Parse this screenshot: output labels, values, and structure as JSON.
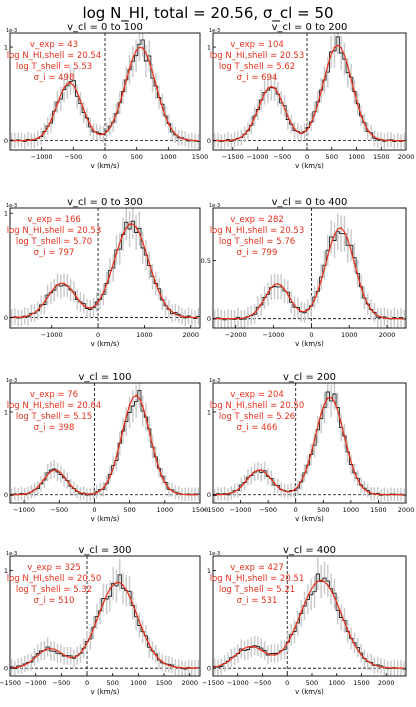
{
  "figure": {
    "suptitle": "log N_HI, total = 20.56, σ_cl = 50",
    "colors": {
      "data": "#222222",
      "model": "#e8301c",
      "errorbar": "#c8c8c8",
      "annotation": "#e8301c"
    }
  },
  "chart_data": [
    {
      "type": "line",
      "title": "v_cl = 0 to 100",
      "xlabel": "v (km/s)",
      "ylabel": "",
      "xlim": [
        -1500,
        1500
      ],
      "ylim": [
        -0.1,
        1.15
      ],
      "exponent": "1e-3",
      "xticks": [
        -1000,
        -500,
        0,
        500,
        1000,
        1500
      ],
      "yticks": [
        0,
        1
      ],
      "annotations": [
        "v_exp = 43",
        "log N_HI,shell = 20.54",
        "log T_shell = 5.53",
        "σ_i = 498"
      ],
      "peaks": {
        "blue": {
          "v": -560,
          "amp": 0.62,
          "width": 200
        },
        "red": {
          "v": 560,
          "amp": 1.0,
          "width": 240
        }
      }
    },
    {
      "type": "line",
      "title": "v_cl = 0 to 200",
      "xlabel": "v (km/s)",
      "ylabel": "",
      "xlim": [
        -1900,
        2000
      ],
      "ylim": [
        -0.1,
        1.15
      ],
      "exponent": "1e-3",
      "xticks": [
        -1500,
        -1000,
        -500,
        0,
        500,
        1000,
        1500,
        2000
      ],
      "yticks": [
        0,
        1
      ],
      "annotations": [
        "v_exp = 104",
        "log N_HI,shell = 20.53",
        "log T_shell = 5.62",
        "σ_i = 694"
      ],
      "peaks": {
        "blue": {
          "v": -720,
          "amp": 0.58,
          "width": 260
        },
        "red": {
          "v": 620,
          "amp": 1.02,
          "width": 290
        }
      }
    },
    {
      "type": "line",
      "title": "v_cl = 0 to 300",
      "xlabel": "v (km/s)",
      "ylabel": "",
      "xlim": [
        -1900,
        2200
      ],
      "ylim": [
        -0.1,
        1.05
      ],
      "exponent": "1e-3",
      "xticks": [
        -1000,
        0,
        1000,
        2000
      ],
      "yticks": [
        0,
        1
      ],
      "annotations": [
        "v_exp = 166",
        "log N_HI,shell = 20.53",
        "log T_shell = 5.70",
        "σ_i = 797"
      ],
      "peaks": {
        "blue": {
          "v": -780,
          "amp": 0.33,
          "width": 300
        },
        "red": {
          "v": 720,
          "amp": 0.9,
          "width": 370
        }
      }
    },
    {
      "type": "line",
      "title": "v_cl = 0 to 400",
      "xlabel": "v (km/s)",
      "ylabel": "",
      "xlim": [
        -2600,
        2500
      ],
      "ylim": [
        -0.08,
        0.95
      ],
      "exponent": "1e-3",
      "xticks": [
        -2000,
        -1000,
        0,
        1000,
        2000
      ],
      "yticks": [
        0,
        0.5
      ],
      "annotations": [
        "v_exp = 282",
        "log N_HI,shell = 20.53",
        "log T_shell = 5.76",
        "σ_i = 799"
      ],
      "peaks": {
        "blue": {
          "v": -900,
          "amp": 0.3,
          "width": 320
        },
        "red": {
          "v": 760,
          "amp": 0.78,
          "width": 380
        }
      }
    },
    {
      "type": "line",
      "title": "v_cl = 100",
      "xlabel": "v (km/s)",
      "ylabel": "",
      "xlim": [
        -1200,
        1500
      ],
      "ylim": [
        -0.1,
        1.35
      ],
      "exponent": "1e-3",
      "xticks": [
        -1000,
        -500,
        0,
        500,
        1000,
        1500
      ],
      "yticks": [
        0,
        1
      ],
      "annotations": [
        "v_exp = 76",
        "log N_HI,shell = 20.64",
        "log T_shell = 5.15",
        "σ_i = 398"
      ],
      "peaks": {
        "blue": {
          "v": -560,
          "amp": 0.3,
          "width": 160
        },
        "red": {
          "v": 590,
          "amp": 1.2,
          "width": 200
        }
      }
    },
    {
      "type": "line",
      "title": "v_cl = 200",
      "xlabel": "v (km/s)",
      "ylabel": "",
      "xlim": [
        -1500,
        2000
      ],
      "ylim": [
        -0.1,
        1.35
      ],
      "exponent": "1e-3",
      "xticks": [
        -1500,
        -1000,
        -500,
        0,
        500,
        1000,
        1500,
        2000
      ],
      "yticks": [
        0,
        1
      ],
      "annotations": [
        "v_exp = 204",
        "log N_HI,shell = 20.50",
        "log T_shell = 5.26",
        "σ_i = 466"
      ],
      "peaks": {
        "blue": {
          "v": -660,
          "amp": 0.3,
          "width": 220
        },
        "red": {
          "v": 620,
          "amp": 1.18,
          "width": 260
        }
      }
    },
    {
      "type": "line",
      "title": "v_cl = 300",
      "xlabel": "v (km/s)",
      "ylabel": "",
      "xlim": [
        -1500,
        2200
      ],
      "ylim": [
        -0.08,
        1.15
      ],
      "exponent": "1e-3",
      "xticks": [
        -1500,
        -1000,
        -500,
        0,
        500,
        1000,
        1500,
        2000
      ],
      "yticks": [
        0,
        1
      ],
      "annotations": [
        "v_exp = 325",
        "log N_HI,shell = 20.50",
        "log T_shell = 5.32",
        "σ_i = 510"
      ],
      "peaks": {
        "blue": {
          "v": -720,
          "amp": 0.2,
          "width": 260
        },
        "red": {
          "v": 600,
          "amp": 0.88,
          "width": 380
        }
      }
    },
    {
      "type": "line",
      "title": "v_cl = 400",
      "xlabel": "v (km/s)",
      "ylabel": "",
      "xlim": [
        -1500,
        2400
      ],
      "ylim": [
        -0.08,
        1.15
      ],
      "exponent": "1e-3",
      "xticks": [
        -1500,
        -1000,
        -500,
        0,
        500,
        1000,
        1500,
        2000
      ],
      "yticks": [
        0,
        1
      ],
      "annotations": [
        "v_exp = 427",
        "log N_HI,shell = 20.51",
        "log T_shell = 5.21",
        "σ_i = 531"
      ],
      "peaks": {
        "blue": {
          "v": -740,
          "amp": 0.22,
          "width": 300
        },
        "red": {
          "v": 680,
          "amp": 0.9,
          "width": 420
        }
      }
    }
  ]
}
